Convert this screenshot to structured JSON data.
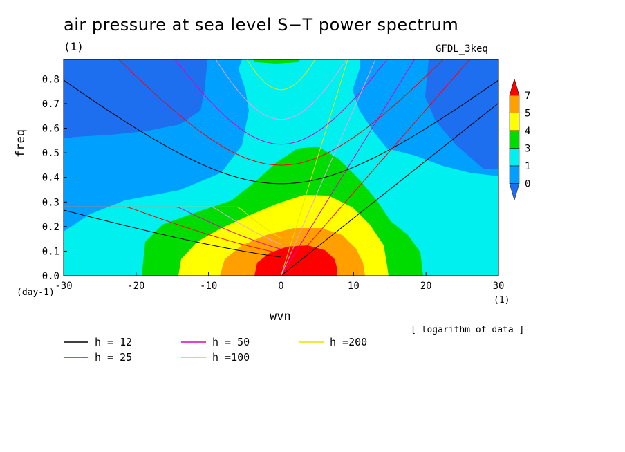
{
  "title": "air pressure at sea level S−T power spectrum",
  "subtitle_unit": "(1)",
  "model": "GFDL_3keq",
  "xlabel": "wvn",
  "ylabel": "freq",
  "x_unit": "(1)",
  "y_unit": "(day-1)",
  "note": "[ logarithm of data ]",
  "chart_data": {
    "type": "heatmap",
    "title": "air pressure at sea level S−T power spectrum",
    "xlabel": "wvn",
    "ylabel": "freq",
    "xlim": [
      -30,
      30
    ],
    "ylim": [
      0,
      0.88
    ],
    "x_ticks": [
      "-30",
      "-20",
      "-10",
      "0",
      "10",
      "20",
      "30"
    ],
    "y_ticks": [
      "0.0",
      "0.1",
      "0.2",
      "0.3",
      "0.4",
      "0.5",
      "0.6",
      "0.7",
      "0.8"
    ],
    "colorbar": {
      "levels": [
        "0",
        "1",
        "3",
        "4",
        "5",
        "7"
      ],
      "colors": [
        "#1e6ef0",
        "#00a0ff",
        "#00f0f0",
        "#00dc00",
        "#ffff00",
        "#ffa000",
        "#ff0000"
      ]
    },
    "contour_fill_description_levels": [
      0,
      1,
      3,
      4,
      5,
      7
    ],
    "dispersion_curves": [
      {
        "label": "h = 12",
        "h": 12,
        "color": "#000000"
      },
      {
        "label": "h = 25",
        "h": 25,
        "color": "#ff0000"
      },
      {
        "label": "h = 50",
        "h": 50,
        "color": "#e000c0"
      },
      {
        "label": "h =100",
        "h": 100,
        "color": "#e8a0e8"
      },
      {
        "label": "h =200",
        "h": 200,
        "color": "#f0e000"
      }
    ]
  }
}
